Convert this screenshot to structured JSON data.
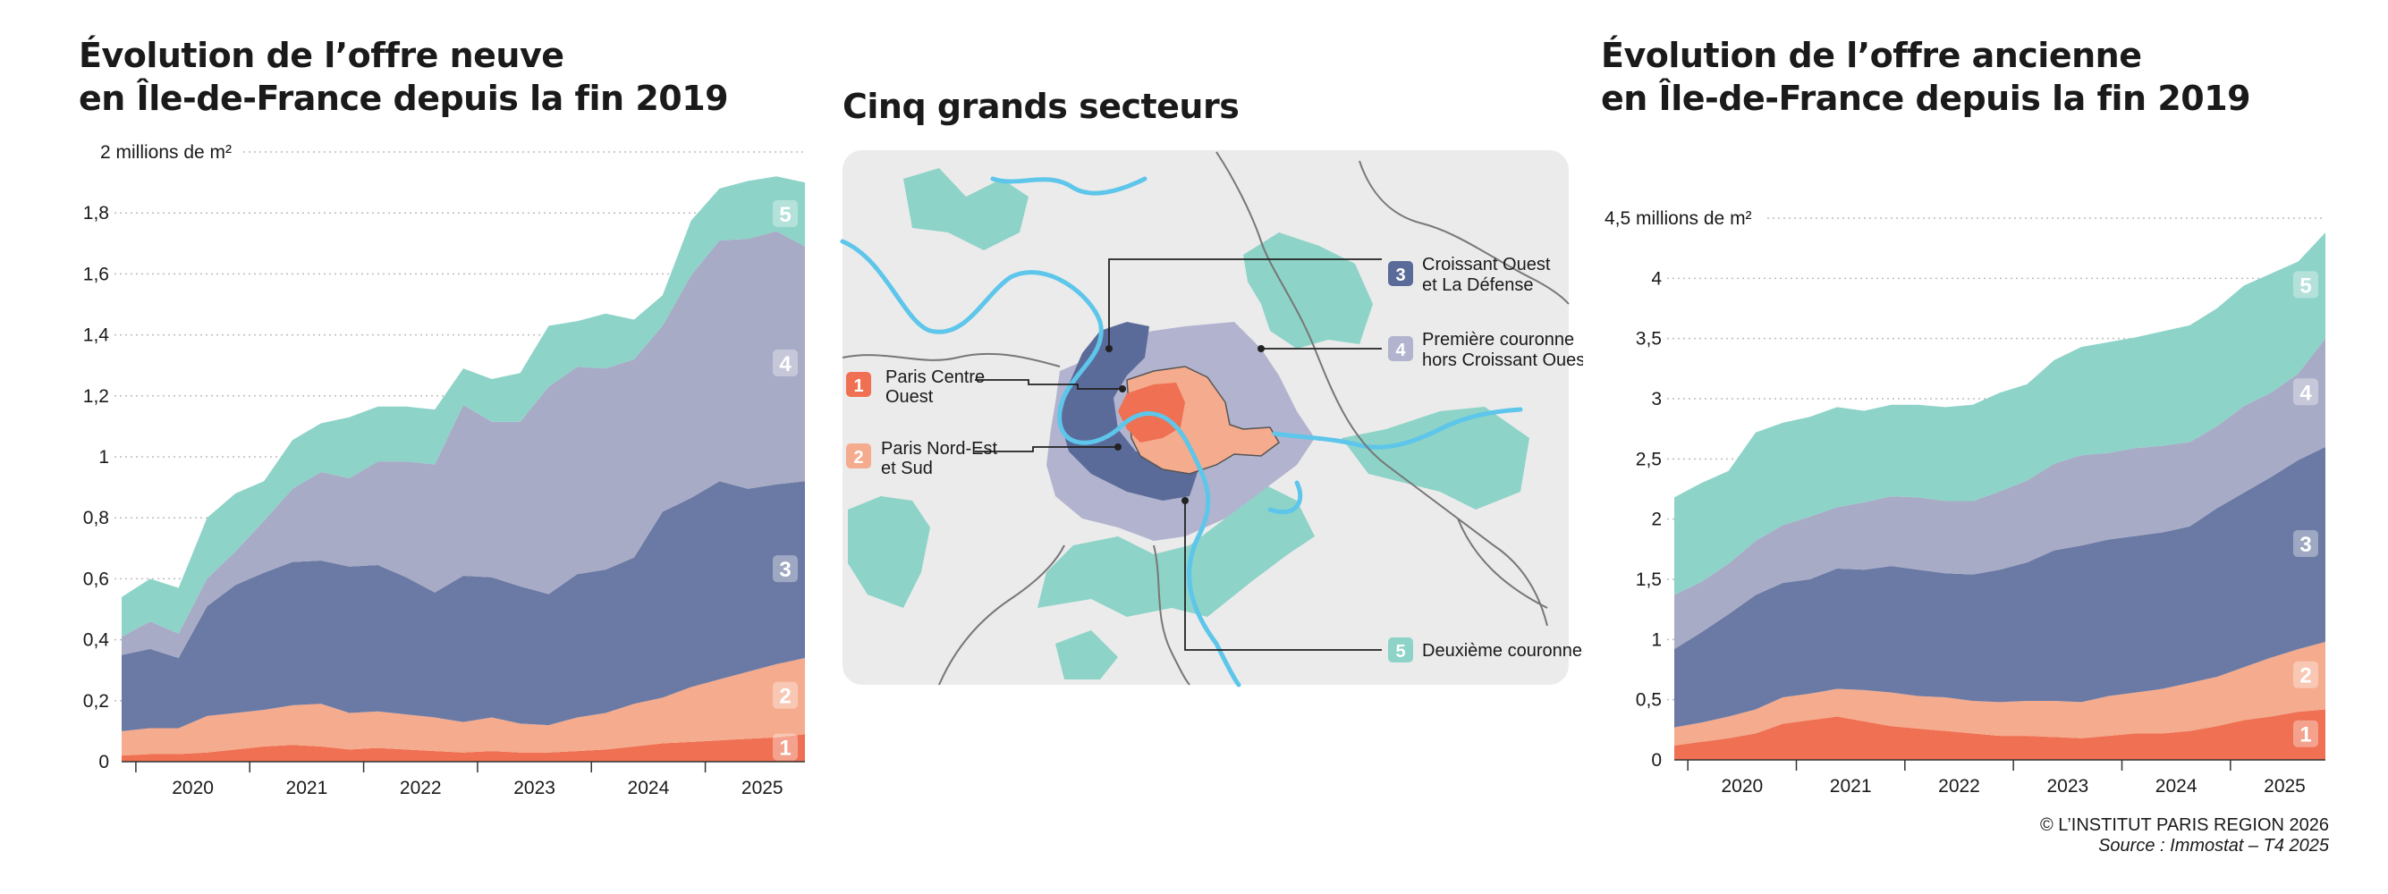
{
  "colors": {
    "s1": "#ef7052",
    "s2": "#f5ab8d",
    "s3": "#6b7aa4",
    "s4": "#a8abc6",
    "s5": "#8dd3c8",
    "paris_centre": "#ef7052",
    "paris_nord": "#f5ab8d",
    "croissant": "#5b6b99",
    "premiere": "#b2b4cf",
    "deuxieme": "#8dd3c8",
    "map_bg": "#ebebeb",
    "river": "#5dc6ea",
    "grid": "#bcbcbc"
  },
  "left": {
    "title_line1": "Évolution de l’offre neuve",
    "title_line2": "en Île-de-France depuis la fin 2019"
  },
  "right": {
    "title_line1": "Évolution de l’offre ancienne",
    "title_line2": "en Île-de-France depuis la fin 2019"
  },
  "map": {
    "title": "Cinq grands secteurs",
    "sectors": [
      {
        "num": "1",
        "label": "Paris Centre",
        "label2": "Ouest"
      },
      {
        "num": "2",
        "label": "Paris Nord-Est",
        "label2": "et Sud"
      },
      {
        "num": "3",
        "label": "Croissant Ouest",
        "label2": "et La Défense"
      },
      {
        "num": "4",
        "label": "Première couronne",
        "label2": "hors Croissant Ouest"
      },
      {
        "num": "5",
        "label": "Deuxième couronne",
        "label2": ""
      }
    ]
  },
  "credit": {
    "line1": "© L’INSTITUT PARIS REGION 2026",
    "line2": "Source : Immostat – T4 2025"
  },
  "chart_data": [
    {
      "type": "area",
      "stacked": true,
      "title": "Évolution de l’offre neuve en Île-de-France depuis la fin 2019",
      "unit_label": "2 millions de m²",
      "ylim": [
        0,
        2
      ],
      "yticks": [
        "0",
        "0,2",
        "0,4",
        "0,6",
        "0,8",
        "1",
        "1,2",
        "1,4",
        "1,6",
        "1,8"
      ],
      "ytick_values": [
        0,
        0.2,
        0.4,
        0.6,
        0.8,
        1.0,
        1.2,
        1.4,
        1.6,
        1.8
      ],
      "x_ticks": [
        "2020",
        "2021",
        "2022",
        "2023",
        "2024",
        "2025"
      ],
      "x": [
        "2019-Q4",
        "2020-Q1",
        "2020-Q2",
        "2020-Q3",
        "2020-Q4",
        "2021-Q1",
        "2021-Q2",
        "2021-Q3",
        "2021-Q4",
        "2022-Q1",
        "2022-Q2",
        "2022-Q3",
        "2022-Q4",
        "2023-Q1",
        "2023-Q2",
        "2023-Q3",
        "2023-Q4",
        "2024-Q1",
        "2024-Q2",
        "2024-Q3",
        "2024-Q4",
        "2025-Q1",
        "2025-Q2",
        "2025-Q3",
        "2025-Q4"
      ],
      "series": [
        {
          "name": "1",
          "values": [
            0.02,
            0.025,
            0.025,
            0.03,
            0.04,
            0.05,
            0.055,
            0.05,
            0.04,
            0.045,
            0.04,
            0.035,
            0.03,
            0.035,
            0.03,
            0.03,
            0.035,
            0.04,
            0.05,
            0.06,
            0.065,
            0.07,
            0.075,
            0.08,
            0.09
          ]
        },
        {
          "name": "2",
          "values": [
            0.08,
            0.085,
            0.085,
            0.12,
            0.12,
            0.12,
            0.13,
            0.14,
            0.12,
            0.12,
            0.115,
            0.11,
            0.1,
            0.11,
            0.095,
            0.09,
            0.11,
            0.12,
            0.14,
            0.15,
            0.18,
            0.2,
            0.22,
            0.24,
            0.25
          ]
        },
        {
          "name": "3",
          "values": [
            0.25,
            0.26,
            0.23,
            0.36,
            0.42,
            0.45,
            0.47,
            0.47,
            0.48,
            0.48,
            0.45,
            0.41,
            0.48,
            0.46,
            0.45,
            0.43,
            0.47,
            0.47,
            0.48,
            0.61,
            0.62,
            0.65,
            0.6,
            0.59,
            0.58
          ]
        },
        {
          "name": "4",
          "values": [
            0.06,
            0.09,
            0.08,
            0.09,
            0.11,
            0.17,
            0.24,
            0.29,
            0.29,
            0.34,
            0.38,
            0.42,
            0.56,
            0.51,
            0.54,
            0.68,
            0.68,
            0.66,
            0.65,
            0.61,
            0.73,
            0.79,
            0.82,
            0.83,
            0.77
          ]
        },
        {
          "name": "5",
          "values": [
            0.13,
            0.14,
            0.15,
            0.2,
            0.19,
            0.13,
            0.16,
            0.16,
            0.2,
            0.18,
            0.18,
            0.18,
            0.12,
            0.14,
            0.16,
            0.2,
            0.15,
            0.18,
            0.13,
            0.1,
            0.18,
            0.17,
            0.19,
            0.18,
            0.21
          ]
        }
      ]
    },
    {
      "type": "area",
      "stacked": true,
      "title": "Évolution de l’offre ancienne en Île-de-France depuis la fin 2019",
      "unit_label": "4,5 millions de m²",
      "ylim": [
        0,
        4.5
      ],
      "yticks": [
        "0",
        "0,5",
        "1",
        "1,5",
        "2",
        "2,5",
        "3",
        "3,5",
        "4"
      ],
      "ytick_values": [
        0,
        0.5,
        1,
        1.5,
        2,
        2.5,
        3,
        3.5,
        4
      ],
      "x_ticks": [
        "2020",
        "2021",
        "2022",
        "2023",
        "2024",
        "2025"
      ],
      "x": [
        "2019-Q4",
        "2020-Q1",
        "2020-Q2",
        "2020-Q3",
        "2020-Q4",
        "2021-Q1",
        "2021-Q2",
        "2021-Q3",
        "2021-Q4",
        "2022-Q1",
        "2022-Q2",
        "2022-Q3",
        "2022-Q4",
        "2023-Q1",
        "2023-Q2",
        "2023-Q3",
        "2023-Q4",
        "2024-Q1",
        "2024-Q2",
        "2024-Q3",
        "2024-Q4",
        "2025-Q1",
        "2025-Q2",
        "2025-Q3",
        "2025-Q4"
      ],
      "series": [
        {
          "name": "1",
          "values": [
            0.12,
            0.15,
            0.18,
            0.22,
            0.3,
            0.33,
            0.36,
            0.32,
            0.28,
            0.26,
            0.24,
            0.22,
            0.2,
            0.2,
            0.19,
            0.18,
            0.2,
            0.22,
            0.22,
            0.24,
            0.28,
            0.33,
            0.36,
            0.4,
            0.42
          ]
        },
        {
          "name": "2",
          "values": [
            0.15,
            0.16,
            0.18,
            0.2,
            0.22,
            0.22,
            0.23,
            0.26,
            0.28,
            0.27,
            0.28,
            0.27,
            0.28,
            0.29,
            0.3,
            0.3,
            0.33,
            0.34,
            0.37,
            0.4,
            0.41,
            0.44,
            0.49,
            0.52,
            0.56
          ]
        },
        {
          "name": "3",
          "values": [
            0.65,
            0.75,
            0.85,
            0.95,
            0.95,
            0.95,
            1.0,
            1.0,
            1.05,
            1.05,
            1.03,
            1.05,
            1.1,
            1.15,
            1.25,
            1.3,
            1.3,
            1.3,
            1.3,
            1.3,
            1.4,
            1.45,
            1.5,
            1.57,
            1.62
          ]
        },
        {
          "name": "4",
          "values": [
            0.45,
            0.42,
            0.42,
            0.45,
            0.48,
            0.52,
            0.51,
            0.56,
            0.58,
            0.6,
            0.6,
            0.61,
            0.65,
            0.68,
            0.72,
            0.75,
            0.72,
            0.73,
            0.72,
            0.7,
            0.68,
            0.72,
            0.7,
            0.72,
            0.9
          ]
        },
        {
          "name": "5",
          "values": [
            0.81,
            0.82,
            0.77,
            0.9,
            0.85,
            0.83,
            0.83,
            0.76,
            0.76,
            0.77,
            0.78,
            0.8,
            0.82,
            0.8,
            0.86,
            0.9,
            0.92,
            0.92,
            0.95,
            0.97,
            0.98,
            1.0,
            0.99,
            0.93,
            0.88
          ]
        }
      ]
    }
  ]
}
